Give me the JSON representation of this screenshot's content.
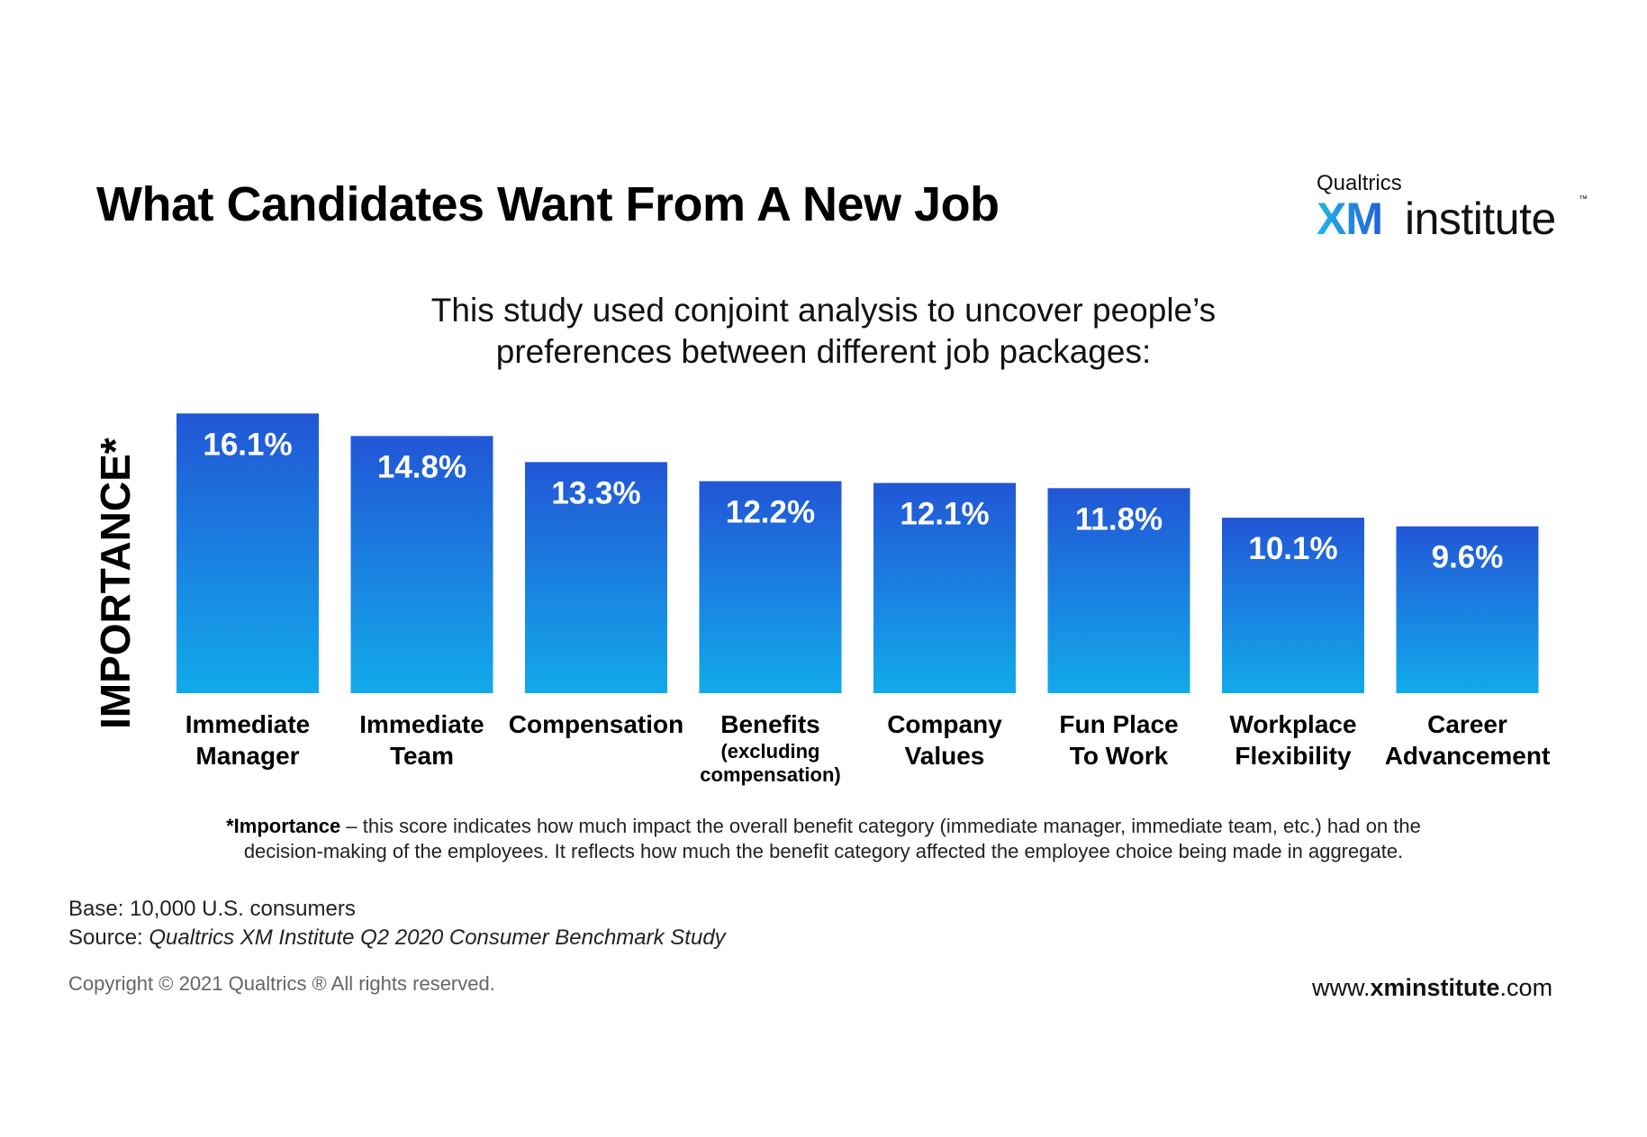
{
  "header": {
    "title": "What Candidates Want From A New Job",
    "subtitle_line1": "This study used conjoint analysis to uncover people’s",
    "subtitle_line2": "preferences between different job packages:"
  },
  "logo": {
    "brand": "Qualtrics",
    "xm": "XM",
    "institute": "institute",
    "tm": "™"
  },
  "colors": {
    "bar_top": "#2256d6",
    "bar_bottom": "#12aaea",
    "bar_label": "#ffffff"
  },
  "chart_data": {
    "type": "bar",
    "ylabel": "IMPORTANCE*",
    "categories": [
      [
        "Immediate",
        "Manager"
      ],
      [
        "Immediate",
        "Team"
      ],
      [
        "Compensation"
      ],
      [
        "Benefits",
        "(excluding",
        "compensation)"
      ],
      [
        "Company",
        "Values"
      ],
      [
        "Fun Place",
        "To Work"
      ],
      [
        "Workplace",
        "Flexibility"
      ],
      [
        "Career",
        "Advancement"
      ]
    ],
    "values": [
      16.1,
      14.8,
      13.3,
      12.2,
      12.1,
      11.8,
      10.1,
      9.6
    ],
    "value_labels": [
      "16.1%",
      "14.8%",
      "13.3%",
      "12.2%",
      "12.1%",
      "11.8%",
      "10.1%",
      "9.6%"
    ],
    "unit": "%",
    "grid": false,
    "legend": "none"
  },
  "footnote": {
    "term": "*Importance",
    "text_line1": " – this score indicates how much impact the overall benefit category (immediate manager, immediate team, etc.) had on the",
    "text_line2": "decision-making of the employees.  It reflects how much the benefit category affected the employee choice being made in aggregate."
  },
  "meta": {
    "base_label": "Base:",
    "base_value": "10,000 U.S. consumers",
    "source_label": "Source:",
    "source_value": "Qualtrics XM Institute Q2 2020 Consumer Benchmark Study",
    "copyright": "Copyright © 2021 Qualtrics ® All rights reserved.",
    "website_prefix": "www.",
    "website_bold": "xminstitute",
    "website_suffix": ".com"
  }
}
